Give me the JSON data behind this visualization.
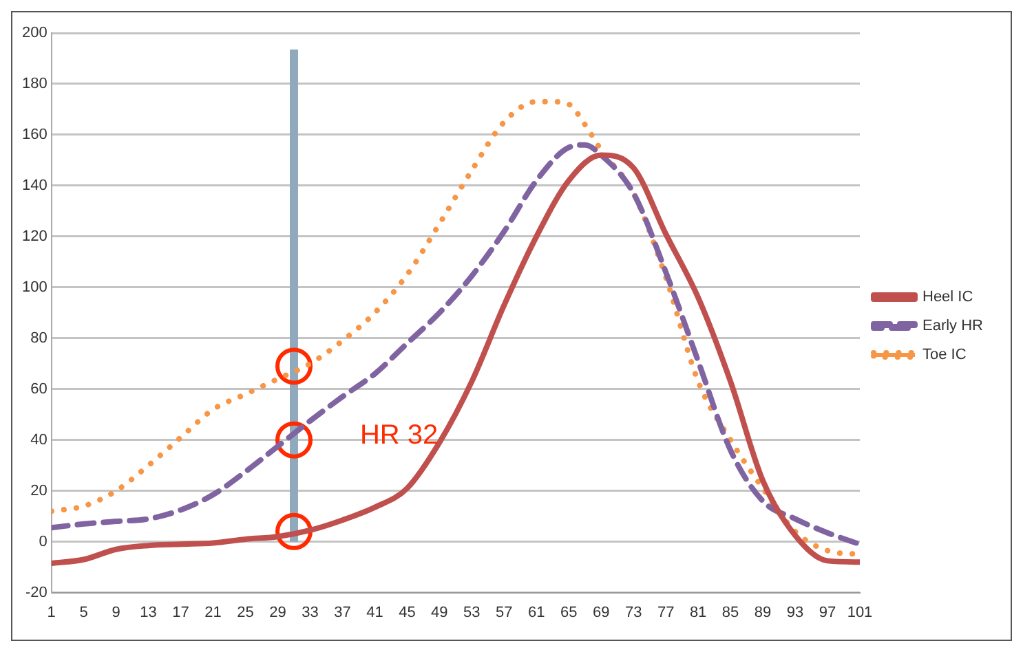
{
  "chart_data": {
    "type": "line",
    "xlim": [
      1,
      101
    ],
    "xticks": [
      1,
      5,
      9,
      13,
      17,
      21,
      25,
      29,
      33,
      37,
      41,
      45,
      49,
      53,
      57,
      61,
      65,
      69,
      73,
      77,
      81,
      85,
      89,
      93,
      97,
      101
    ],
    "ylim": [
      -20,
      200
    ],
    "yticks": [
      -20,
      0,
      20,
      40,
      60,
      80,
      100,
      120,
      140,
      160,
      180,
      200
    ],
    "grid": "y",
    "legend": "right",
    "series": [
      {
        "name": "Heel IC",
        "color": "#c0504d",
        "line_style": "solid",
        "marker": "none",
        "x": [
          1,
          5,
          9,
          13,
          17,
          21,
          25,
          29,
          33,
          37,
          41,
          45,
          49,
          53,
          57,
          61,
          65,
          69,
          73,
          77,
          81,
          85,
          89,
          93,
          97,
          101
        ],
        "values": [
          -8.5,
          -7,
          -3,
          -1.5,
          -1,
          -0.5,
          1,
          2,
          4.5,
          8.5,
          13.5,
          21,
          39,
          63,
          93,
          120,
          142,
          152,
          147,
          121,
          96,
          63,
          24,
          2.5,
          -7.5,
          -8
        ]
      },
      {
        "name": "Early HR",
        "color": "#8064a2",
        "line_style": "dashed",
        "marker": "none",
        "x": [
          1,
          5,
          9,
          13,
          17,
          21,
          25,
          29,
          33,
          37,
          41,
          45,
          49,
          53,
          57,
          61,
          65,
          67,
          69,
          73,
          77,
          81,
          85,
          89,
          93,
          97,
          101
        ],
        "values": [
          5.5,
          7,
          8,
          9,
          12.5,
          18.5,
          27.5,
          37.5,
          47.5,
          57,
          66,
          78,
          90,
          104.5,
          122,
          142,
          155,
          156,
          152,
          137,
          106,
          71,
          36,
          16,
          9,
          3.5,
          -1
        ]
      },
      {
        "name": "Toe IC",
        "color": "#f79646",
        "line_style": "dotted",
        "marker": "none",
        "x": [
          1,
          5,
          9,
          13,
          17,
          21,
          25,
          29,
          33,
          37,
          41,
          45,
          49,
          53,
          57,
          61,
          63,
          65,
          67,
          69,
          73,
          77,
          81,
          85,
          89,
          93,
          97,
          101
        ],
        "values": [
          12,
          14,
          20,
          30,
          41,
          52,
          58,
          64,
          70,
          79,
          90,
          105,
          125,
          146,
          165,
          173,
          173,
          172,
          164,
          154,
          137,
          104,
          63,
          40,
          21,
          4,
          -3.5,
          -5
        ]
      },
      {
        "type": "scatter",
        "color": "#ff2a00",
        "marker": "circle",
        "x": [
          31,
          31,
          31
        ],
        "values": [
          4,
          40,
          69
        ]
      }
    ],
    "ref_lines": [
      {
        "axis": "x",
        "value": 31,
        "color": "#91a9bd"
      }
    ],
    "annotations": [
      "HR 32"
    ]
  }
}
